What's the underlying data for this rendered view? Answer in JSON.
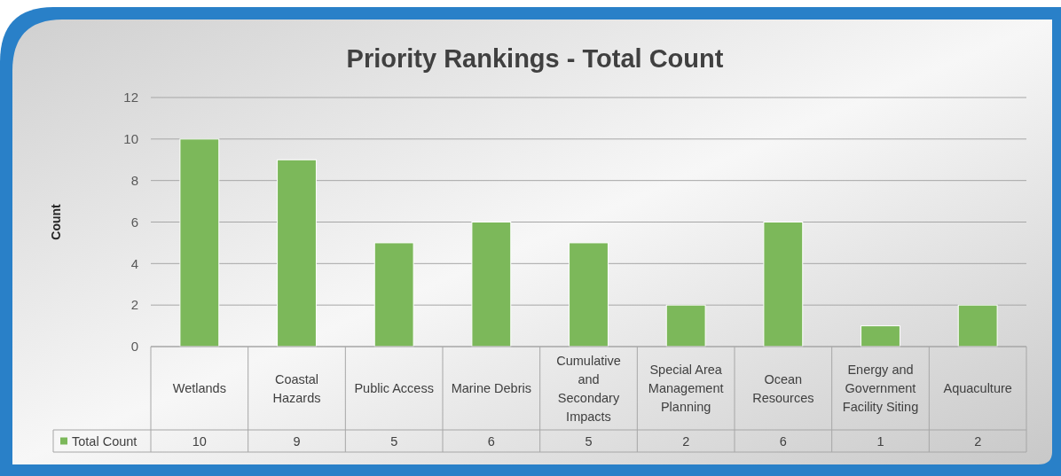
{
  "chart_data": {
    "type": "bar",
    "title": "Priority Rankings - Total Count",
    "ylabel": "Count",
    "categories": [
      "Wetlands",
      "Coastal Hazards",
      "Public Access",
      "Marine Debris",
      "Cumulative and Secondary Impacts",
      "Special Area Management Planning",
      "Ocean Resources",
      "Energy and Government Facility Siting",
      "Aquaculture"
    ],
    "series": [
      {
        "name": "Total Count",
        "color": "#7cb85a",
        "values": [
          10,
          9,
          5,
          6,
          5,
          2,
          6,
          1,
          2
        ]
      }
    ],
    "ylim": [
      0,
      12
    ],
    "yticks": [
      0,
      2,
      4,
      6,
      8,
      10,
      12
    ],
    "grid": "y",
    "data_labels": true,
    "legend": "bottom"
  }
}
